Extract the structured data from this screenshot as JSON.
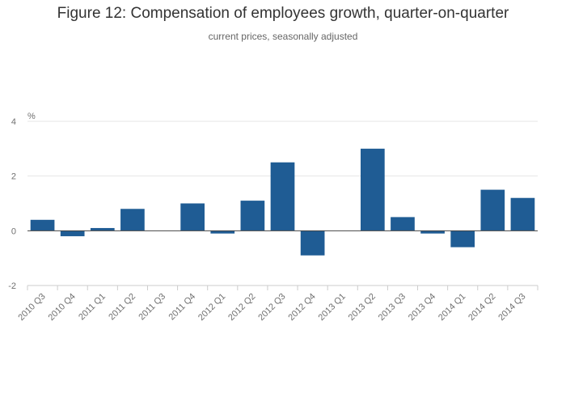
{
  "header": {
    "title": "Figure 12: Compensation of employees growth, quarter-on-quarter",
    "subtitle": "current prices, seasonally adjusted"
  },
  "colors": {
    "bar": "#1f5c94",
    "grid": "#e6e6e6",
    "axis": "#cccccc",
    "text": "#707070"
  },
  "chart_data": {
    "type": "bar",
    "ylabel": "%",
    "ylim": [
      -2,
      4
    ],
    "yticks": [
      -2,
      0,
      2,
      4
    ],
    "grid": true,
    "categories": [
      "2010 Q3",
      "2010 Q4",
      "2011 Q1",
      "2011 Q2",
      "2011 Q3",
      "2011 Q4",
      "2012 Q1",
      "2012 Q2",
      "2012 Q3",
      "2012 Q4",
      "2013 Q1",
      "2013 Q2",
      "2013 Q3",
      "2013 Q4",
      "2014 Q1",
      "2014 Q2",
      "2014 Q3"
    ],
    "values": [
      0.4,
      -0.2,
      0.1,
      0.8,
      0.0,
      1.0,
      -0.1,
      1.1,
      2.5,
      -0.9,
      0.0,
      3.0,
      0.5,
      -0.1,
      -0.6,
      1.5,
      1.2
    ]
  }
}
